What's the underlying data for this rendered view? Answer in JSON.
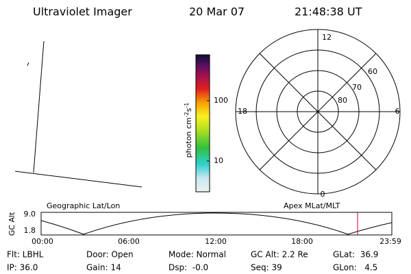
{
  "header": {
    "instrument": "Ultraviolet Imager",
    "date": "20 Mar 07",
    "time": "21:48:38 UT"
  },
  "colorbar": {
    "label": {
      "text": "photon cm",
      "exp1": "-2",
      "unit2": "s",
      "exp2": "-1"
    },
    "ticks": [
      "100",
      "10"
    ]
  },
  "polar": {
    "mlt_labels": [
      "12",
      "6",
      "0",
      "18"
    ],
    "lat_labels": [
      "60",
      "70",
      "80"
    ]
  },
  "timeline": {
    "left_title": "Geographic Lat/Lon",
    "right_title": "Apex MLat/MLT",
    "axis_label": "GC Alt",
    "y_labels": [
      "9.0",
      "1.8"
    ],
    "time_labels": [
      "00:00",
      "06:00",
      "12:00",
      "18:00",
      "23:59"
    ]
  },
  "footer": {
    "rows": [
      [
        "Flt: LBHL",
        "Door: Open",
        "Mode: Normal",
        "GC Alt: 2.2 Re",
        "GLat:  36.9"
      ],
      [
        "IP: 36.0",
        "Gain: 14",
        "Dsp:  -0.0",
        "Seq: 39",
        "GLon:   4.5"
      ]
    ]
  }
}
